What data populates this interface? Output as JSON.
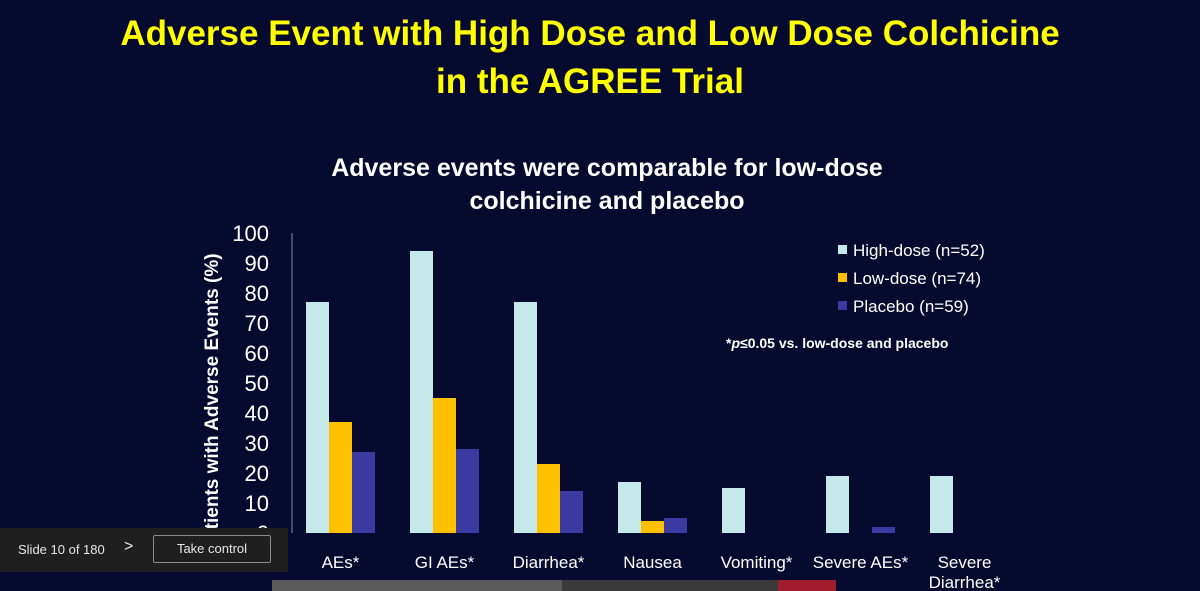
{
  "slide": {
    "title_line1": "Adverse Event with High Dose and Low Dose Colchicine",
    "title_line2": "in the AGREE Trial"
  },
  "chart_data": {
    "type": "bar",
    "title_lines": [
      "Adverse events were comparable for low-dose",
      "colchicine and placebo"
    ],
    "ylabel": "Patients with Adverse Events (%)",
    "xlabel": "",
    "ylim": [
      0,
      100
    ],
    "yticks": [
      0,
      10,
      20,
      30,
      40,
      50,
      60,
      70,
      80,
      90,
      100
    ],
    "categories": [
      [
        "AEs*"
      ],
      [
        "GI AEs*"
      ],
      [
        "Diarrhea*"
      ],
      [
        "Nausea"
      ],
      [
        "Vomiting*"
      ],
      [
        "Severe AEs*"
      ],
      [
        "Severe",
        "Diarrhea*"
      ]
    ],
    "series": [
      {
        "name": "High-dose (n=52)",
        "color": "#c5e8ea",
        "values": [
          77,
          94,
          77,
          17,
          15,
          19,
          19
        ]
      },
      {
        "name": "Low-dose (n=74)",
        "color": "#ffc000",
        "values": [
          37,
          45,
          23,
          4,
          0,
          0,
          0
        ]
      },
      {
        "name": "Placebo (n=59)",
        "color": "#3a3aa0",
        "values": [
          27,
          28,
          14,
          5,
          0,
          2,
          0
        ]
      }
    ],
    "annotation": {
      "prefix": "*",
      "italic": "p",
      "rest": "≤0.05 vs. low-dose and placebo"
    },
    "legend_position": "top-right",
    "grid": false
  },
  "controls": {
    "slide_counter": "Slide 10 of 180",
    "next_icon": "chevron-right-icon",
    "next_glyph": ">",
    "take_control": "Take control",
    "progress_fraction": 0.53
  }
}
